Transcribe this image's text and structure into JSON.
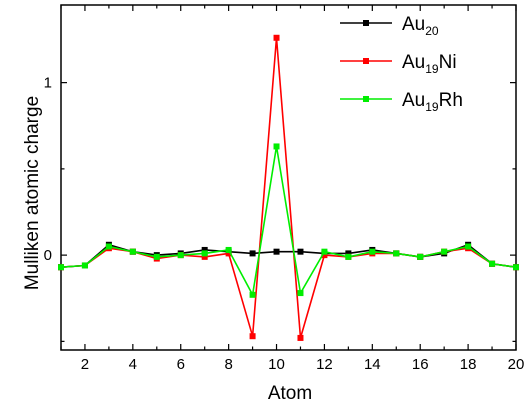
{
  "chart_data": {
    "type": "line",
    "xlabel": "Atom",
    "ylabel": "Mulliken atomic charge",
    "xlim": [
      1,
      20
    ],
    "ylim": [
      -0.55,
      1.45
    ],
    "x_ticks": [
      2,
      4,
      6,
      8,
      10,
      12,
      14,
      16,
      18,
      20
    ],
    "y_ticks": [
      0,
      1
    ],
    "x_tick_labels": [
      "2",
      "4",
      "6",
      "8",
      "10",
      "12",
      "14",
      "16",
      "18",
      "20"
    ],
    "y_tick_labels": [
      "0",
      "1"
    ],
    "grid": false,
    "legend_position": "top-right",
    "x": [
      1,
      2,
      3,
      4,
      5,
      6,
      7,
      8,
      9,
      10,
      11,
      12,
      13,
      14,
      15,
      16,
      17,
      18,
      19,
      20
    ],
    "series": [
      {
        "name": "Au20",
        "legend_base": "Au",
        "legend_sub": "20",
        "legend_suffix": "",
        "color": "#000000",
        "values": [
          -0.07,
          -0.06,
          0.06,
          0.02,
          0.0,
          0.01,
          0.03,
          0.02,
          0.01,
          0.02,
          0.02,
          0.01,
          0.01,
          0.03,
          0.01,
          -0.01,
          0.01,
          0.06,
          -0.05,
          -0.07
        ]
      },
      {
        "name": "Au19Ni",
        "legend_base": "Au",
        "legend_sub": "19",
        "legend_suffix": "Ni",
        "color": "#ff0000",
        "values": [
          -0.07,
          -0.06,
          0.04,
          0.02,
          -0.02,
          0.0,
          -0.01,
          0.01,
          -0.47,
          1.26,
          -0.48,
          0.0,
          -0.01,
          0.01,
          0.01,
          -0.01,
          0.02,
          0.04,
          -0.05,
          -0.07
        ]
      },
      {
        "name": "Au19Rh",
        "legend_base": "Au",
        "legend_sub": "19",
        "legend_suffix": "Rh",
        "color": "#00ee00",
        "values": [
          -0.07,
          -0.06,
          0.05,
          0.02,
          -0.01,
          0.0,
          0.01,
          0.03,
          -0.23,
          0.63,
          -0.22,
          0.02,
          -0.01,
          0.02,
          0.01,
          -0.01,
          0.02,
          0.05,
          -0.05,
          -0.07
        ]
      }
    ]
  }
}
